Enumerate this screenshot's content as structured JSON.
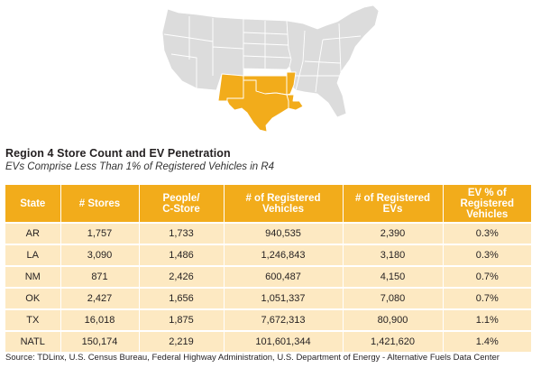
{
  "title": "Region 4 Store Count and EV Penetration",
  "subtitle": "EVs Comprise Less Than 1% of Registered Vehicles in R4",
  "colors": {
    "header": "#f2ac1b",
    "row": "#fde9c2",
    "highlight_state": "#f2ac1b",
    "map_base": "#dcdcdc"
  },
  "map": {
    "highlighted_states": [
      "NM",
      "OK",
      "TX",
      "AR",
      "LA"
    ]
  },
  "table": {
    "columns": [
      "State",
      "# Stores",
      "People/\nC-Store",
      "# of Registered\nVehicles",
      "# of Registered\nEVs",
      "EV % of\nRegistered\nVehicles"
    ],
    "rows": [
      [
        "AR",
        "1,757",
        "1,733",
        "940,535",
        "2,390",
        "0.3%"
      ],
      [
        "LA",
        "3,090",
        "1,486",
        "1,246,843",
        "3,180",
        "0.3%"
      ],
      [
        "NM",
        "871",
        "2,426",
        "600,487",
        "4,150",
        "0.7%"
      ],
      [
        "OK",
        "2,427",
        "1,656",
        "1,051,337",
        "7,080",
        "0.7%"
      ],
      [
        "TX",
        "16,018",
        "1,875",
        "7,672,313",
        "80,900",
        "1.1%"
      ],
      [
        "NATL",
        "150,174",
        "2,219",
        "101,601,344",
        "1,421,620",
        "1.4%"
      ]
    ]
  },
  "source": "Source: TDLinx, U.S. Census Bureau, Federal Highway Administration, U.S. Department of Energy - Alternative Fuels Data Center"
}
